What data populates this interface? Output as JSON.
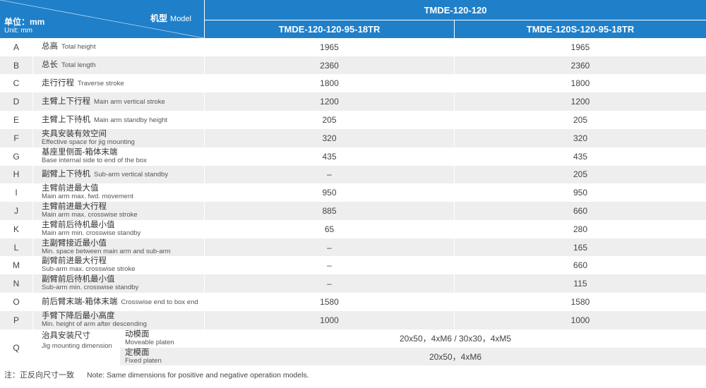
{
  "header": {
    "unit_cn": "单位：mm",
    "unit_en": "Unit: mm",
    "model_cn": "机型",
    "model_en": "Model",
    "series": "TMDE-120-120",
    "col1": "TMDE-120-120-95-18TR",
    "col2": "TMDE-120S-120-95-18TR"
  },
  "rows": [
    {
      "letter": "A",
      "cn": "总高",
      "en": "Total height",
      "v1": "1965",
      "v2": "1965"
    },
    {
      "letter": "B",
      "cn": "总长",
      "en": "Total length",
      "v1": "2360",
      "v2": "2360"
    },
    {
      "letter": "C",
      "cn": "走行行程",
      "en": "Traverse stroke",
      "v1": "1800",
      "v2": "1800"
    },
    {
      "letter": "D",
      "cn": "主臂上下行程",
      "en": "Main arm vertical stroke",
      "v1": "1200",
      "v2": "1200"
    },
    {
      "letter": "E",
      "cn": "主臂上下待机",
      "en": "Main arm standby height",
      "v1": "205",
      "v2": "205"
    },
    {
      "letter": "F",
      "cn": "夹具安装有效空间",
      "en": "Effective space for jig mounting",
      "v1": "320",
      "v2": "320"
    },
    {
      "letter": "G",
      "cn": "基座里侧面-箱体末端",
      "en": "Base internal side to end of the box",
      "v1": "435",
      "v2": "435"
    },
    {
      "letter": "H",
      "cn": "副臂上下待机",
      "en": "Sub-arm vertical standby",
      "v1": "–",
      "v2": "205"
    },
    {
      "letter": "I",
      "cn": "主臂前进最大值",
      "en": "Main arm max. fwd. movement",
      "v1": "950",
      "v2": "950"
    },
    {
      "letter": "J",
      "cn": "主臂前进最大行程",
      "en": "Main arm max. crosswise stroke",
      "v1": "885",
      "v2": "660"
    },
    {
      "letter": "K",
      "cn": "主臂前后待机最小值",
      "en": "Main arm min. crosswise standby",
      "v1": "65",
      "v2": "280"
    },
    {
      "letter": "L",
      "cn": "主副臂接近最小值",
      "en": "Min. space between main arm and sub-arm",
      "v1": "–",
      "v2": "165"
    },
    {
      "letter": "M",
      "cn": "副臂前进最大行程",
      "en": "Sub-arm max. crosswise stroke",
      "v1": "–",
      "v2": "660"
    },
    {
      "letter": "N",
      "cn": "副臂前后待机最小值",
      "en": "Sub-arm min. crosswise standby",
      "v1": "–",
      "v2": "115"
    },
    {
      "letter": "O",
      "cn": "前后臂末端-箱体末端",
      "en": "Crosswise end to box end",
      "v1": "1580",
      "v2": "1580"
    },
    {
      "letter": "P",
      "cn": "手臂下降后最小高度",
      "en": "Min. height of arm after descending",
      "v1": "1000",
      "v2": "1000"
    }
  ],
  "q": {
    "letter": "Q",
    "cn": "治具安装尺寸",
    "en": "Jig mounting dimension",
    "moveable_cn": "动模面",
    "moveable_en": "Moveable platen",
    "moveable_value": "20x50，4xM6 / 30x30，4xM5",
    "fixed_cn": "定模面",
    "fixed_en": "Fixed platen",
    "fixed_value": "20x50，4xM6"
  },
  "note": {
    "cn": "注：正反向尺寸一致",
    "en": "Note: Same dimensions for positive and negative operation models."
  },
  "colors": {
    "header_blue": "#1f7fc9",
    "row_shade": "#eeeeee"
  }
}
